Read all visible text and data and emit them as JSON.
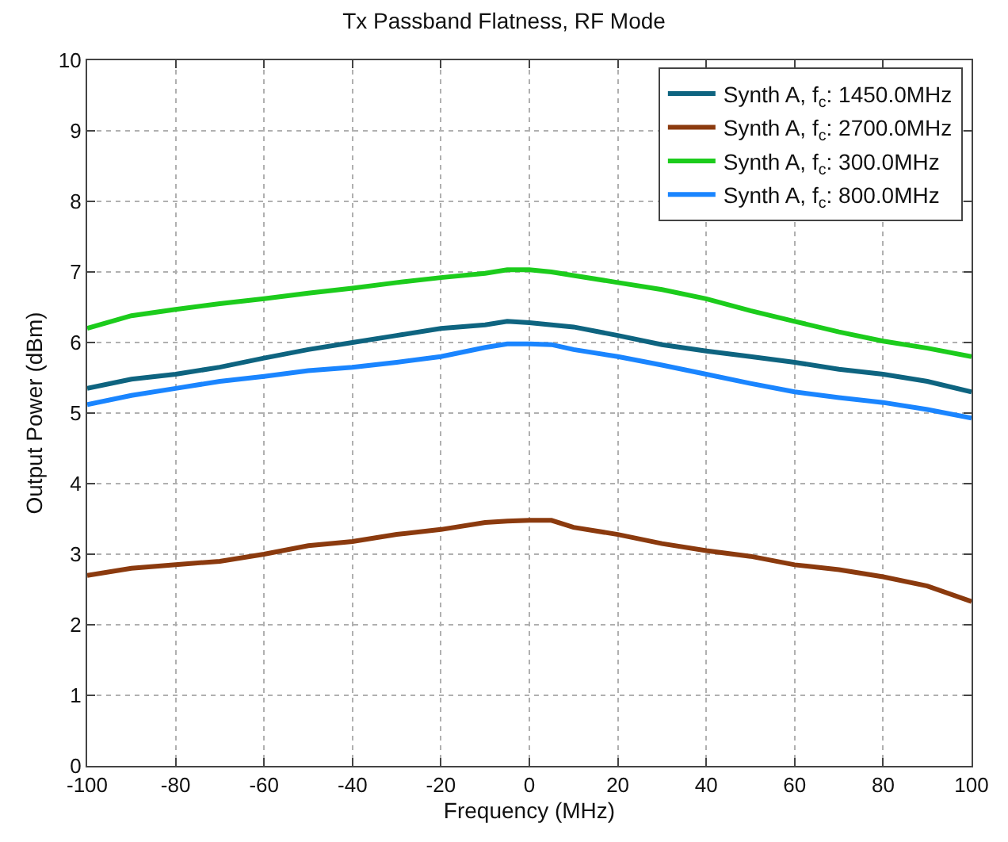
{
  "chart_data": {
    "type": "line",
    "title": "Tx Passband Flatness, RF Mode",
    "xlabel": "Frequency (MHz)",
    "ylabel": "Output Power (dBm)",
    "x": [
      -100,
      -90,
      -80,
      -70,
      -60,
      -50,
      -40,
      -30,
      -20,
      -10,
      -5,
      0,
      5,
      10,
      20,
      30,
      40,
      50,
      60,
      70,
      80,
      90,
      100
    ],
    "series": [
      {
        "name": "Synth A, f$_{c}$: 1450.0MHz",
        "color": "#0e6480",
        "values": [
          5.35,
          5.48,
          5.55,
          5.65,
          5.78,
          5.9,
          6.0,
          6.1,
          6.2,
          6.25,
          6.3,
          6.28,
          6.25,
          6.22,
          6.1,
          5.97,
          5.88,
          5.8,
          5.72,
          5.62,
          5.55,
          5.45,
          5.3
        ]
      },
      {
        "name": "Synth A, f$_{c}$: 2700.0MHz",
        "color": "#8b3a0e",
        "values": [
          2.7,
          2.8,
          2.85,
          2.9,
          3.0,
          3.12,
          3.18,
          3.28,
          3.35,
          3.45,
          3.47,
          3.48,
          3.48,
          3.38,
          3.28,
          3.15,
          3.05,
          2.97,
          2.85,
          2.78,
          2.68,
          2.55,
          2.33
        ]
      },
      {
        "name": "Synth A, f$_{c}$: 300.0MHz",
        "color": "#1ccc1c",
        "values": [
          6.2,
          6.38,
          6.47,
          6.55,
          6.62,
          6.7,
          6.77,
          6.85,
          6.92,
          6.98,
          7.03,
          7.03,
          7.0,
          6.95,
          6.85,
          6.75,
          6.62,
          6.45,
          6.3,
          6.15,
          6.02,
          5.92,
          5.8
        ]
      },
      {
        "name": "Synth A, f$_{c}$: 800.0MHz",
        "color": "#1a85ff",
        "values": [
          5.12,
          5.25,
          5.35,
          5.45,
          5.52,
          5.6,
          5.65,
          5.72,
          5.8,
          5.93,
          5.98,
          5.98,
          5.97,
          5.9,
          5.8,
          5.68,
          5.55,
          5.42,
          5.3,
          5.22,
          5.15,
          5.05,
          4.93
        ]
      }
    ],
    "xlim": [
      -100,
      100
    ],
    "xticks": [
      -100,
      -80,
      -60,
      -40,
      -20,
      0,
      20,
      40,
      60,
      80,
      100
    ],
    "ylim": [
      0,
      10
    ],
    "yticks": [
      0,
      1,
      2,
      3,
      4,
      5,
      6,
      7,
      8,
      9,
      10
    ],
    "grid": true,
    "legend": "top right",
    "line_style": "solid",
    "marker": "none"
  }
}
